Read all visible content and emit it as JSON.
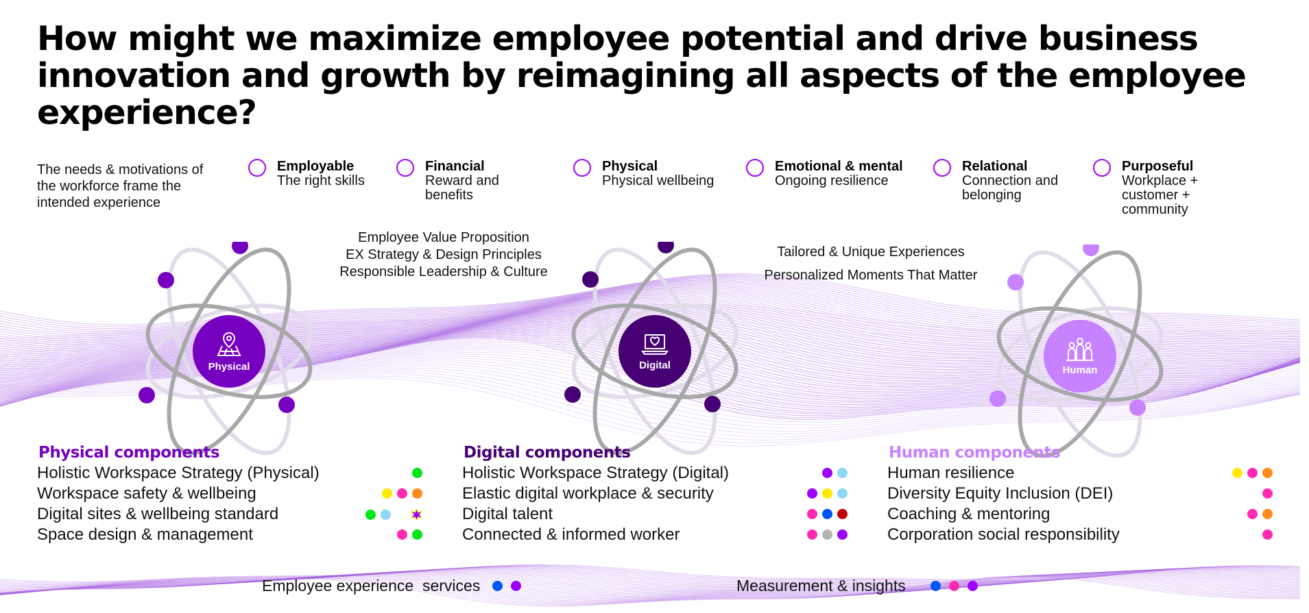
{
  "title": "How might we maximize employee potential and drive business innovation and growth by reimagining all aspects of the employee experience?",
  "intro": "The needs & motivations of the workforce frame the intended experience",
  "needs": [
    {
      "name": "Employable",
      "desc": "The right skills"
    },
    {
      "name": "Financial",
      "desc": "Reward and benefits"
    },
    {
      "name": "Physical",
      "desc": "Physical wellbeing"
    },
    {
      "name": "Emotional & mental",
      "desc": "Ongoing resilience"
    },
    {
      "name": "Relational",
      "desc": "Connection and belonging"
    },
    {
      "name": "Purposeful",
      "desc": "Workplace + customer + community"
    }
  ],
  "center_left": [
    "Employee Value Proposition",
    "EX Strategy & Design Principles",
    "Responsible Leadership & Culture"
  ],
  "center_right": [
    "Tailored & Unique Experiences",
    "Personalized Moments That Matter"
  ],
  "pillars": [
    {
      "label": "Physical",
      "icon": "map-pin-icon",
      "core_color": "#7500c0",
      "node_color": "#7500c0"
    },
    {
      "label": "Digital",
      "icon": "laptop-heart-icon",
      "core_color": "#460073",
      "node_color": "#460073"
    },
    {
      "label": "Human",
      "icon": "people-icon",
      "core_color": "#c782ff",
      "node_color": "#c782ff"
    }
  ],
  "components": [
    {
      "heading": "Physical components",
      "color": "#7500c0",
      "items": [
        {
          "label": "Holistic Workspace Strategy (Physical)",
          "dots": [
            "#00e619"
          ]
        },
        {
          "label": "Workspace safety & wellbeing",
          "dots": [
            "#ffeb00",
            "#ff2ab1",
            "#ff8c1a"
          ]
        },
        {
          "label": "Digital sites & wellbeing standard",
          "dots": [
            "#00e619",
            "#8ed6f5",
            "spacer",
            "star"
          ]
        },
        {
          "label": "Space design & management",
          "dots": [
            "#ff2ab1",
            "#00e619"
          ]
        }
      ]
    },
    {
      "heading": "Digital components",
      "color": "#460073",
      "items": [
        {
          "label": "Holistic Workspace Strategy (Digital)",
          "dots": [
            "#9d00ff",
            "#8ed6f5"
          ]
        },
        {
          "label": "Elastic digital workplace & security",
          "dots": [
            "#9d00ff",
            "#ffeb00",
            "#8ed6f5"
          ]
        },
        {
          "label": "Digital talent",
          "dots": [
            "#ff2ab1",
            "#0056f0",
            "#c00000"
          ]
        },
        {
          "label": "Connected & informed worker",
          "dots": [
            "#ff2ab1",
            "#b3b3b3",
            "#9d00ff"
          ]
        }
      ]
    },
    {
      "heading": "Human components",
      "color": "#c782ff",
      "items": [
        {
          "label": "Human resilience",
          "dots": [
            "#ffeb00",
            "#ff2ab1",
            "#ff8c1a"
          ]
        },
        {
          "label": "Diversity Equity Inclusion (DEI)",
          "dots": [
            "#ff2ab1"
          ]
        },
        {
          "label": "Coaching & mentoring",
          "dots": [
            "#ff2ab1",
            "#ff8c1a"
          ]
        },
        {
          "label": "Corporation social responsibility",
          "dots": [
            "#ff2ab1"
          ]
        }
      ]
    }
  ],
  "footer": [
    {
      "label": "Employee experience  services",
      "dots": [
        "#0056f0",
        "#9d00ff"
      ]
    },
    {
      "label": "Measurement & insights",
      "dots": [
        "#0056f0",
        "#ff2ab1",
        "#9d00ff"
      ]
    }
  ]
}
